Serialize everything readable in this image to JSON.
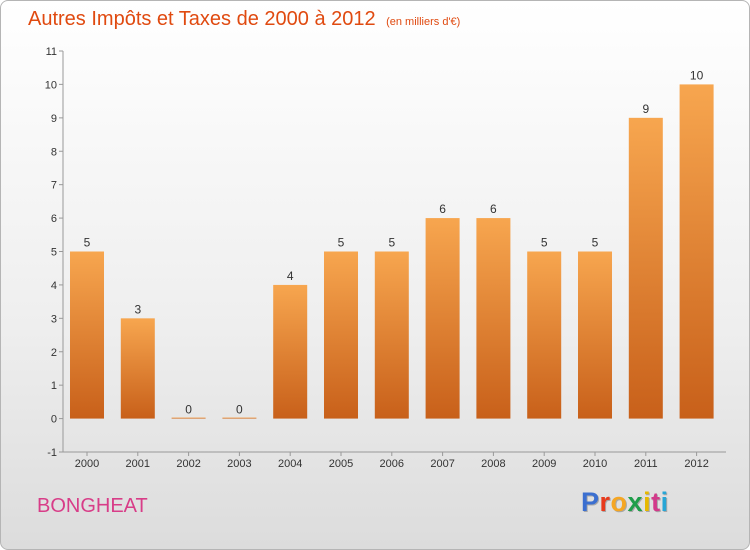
{
  "header": {
    "title": "Autres Impôts et Taxes de 2000 à 2012",
    "unit": "(en milliers d'€)"
  },
  "footer": {
    "commune": "BONGHEAT",
    "logo_letters": [
      "P",
      "r",
      "o",
      "x",
      "i",
      "t",
      "i"
    ],
    "logo_colors": [
      "#3b6fd0",
      "#e83a1c",
      "#f5a623",
      "#1e9e4a",
      "#e7b800",
      "#d23a8a",
      "#27a6d6"
    ]
  },
  "colors": {
    "bar_top": "#f7a64f",
    "bar_bottom": "#c8601a",
    "title": "#e04a10",
    "commune": "#d83d88"
  },
  "chart_data": {
    "type": "bar",
    "title": "Autres Impôts et Taxes de 2000 à 2012",
    "subtitle": "(en milliers d'€)",
    "categories": [
      "2000",
      "2001",
      "2002",
      "2003",
      "2004",
      "2005",
      "2006",
      "2007",
      "2008",
      "2009",
      "2010",
      "2011",
      "2012"
    ],
    "values": [
      5,
      3,
      0,
      0,
      4,
      5,
      5,
      6,
      6,
      5,
      5,
      9,
      10
    ],
    "y_ticks": [
      "-1",
      "0",
      "1",
      "2",
      "3",
      "4",
      "5",
      "6",
      "7",
      "8",
      "9",
      "10",
      "11"
    ],
    "ylim": [
      -1,
      11
    ],
    "grid": false,
    "legend": "none"
  }
}
